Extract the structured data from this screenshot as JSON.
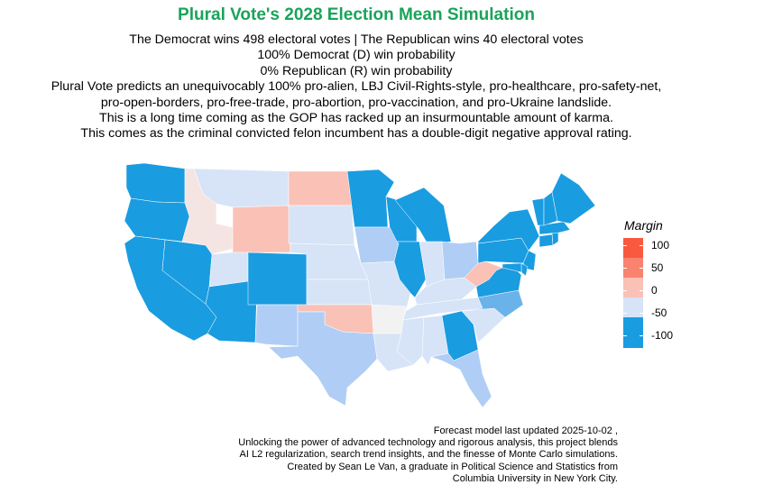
{
  "title": "Plural Vote's 2028 Election Mean Simulation",
  "subtitle_lines": [
    "The Democrat wins 498 electoral votes | The Republican wins 40 electoral votes",
    "100% Democrat (D) win probability",
    "0% Republican (R) win probability",
    "Plural Vote predicts an unequivocably 100% pro-alien, LBJ Civil-Rights-style, pro-healthcare, pro-safety-net,",
    "pro-open-borders, pro-free-trade, pro-abortion, pro-vaccination, and pro-Ukraine landslide.",
    "This is a long time coming as the GOP has racked up an insurmountable amount of karma.",
    "This comes as the criminal convicted felon incumbent has a double-digit negative approval rating."
  ],
  "legend": {
    "title": "Margin",
    "ticks": [
      "100",
      "50",
      "0",
      "-50",
      "-100"
    ],
    "colors": [
      "#f8593f",
      "#f9836e",
      "#fac1b6",
      "#d7e4f7",
      "#1a9ce0",
      "#1a9ce0"
    ]
  },
  "caption_lines": [
    "Forecast model last updated 2025-10-02 ,",
    "Unlocking the power of advanced technology and rigorous analysis, this project blends",
    "AI L2 regularization, search trend insights, and the finesse of Monte Carlo simulations.",
    "Created by Sean Le Van, a graduate in Political Science and Statistics from",
    "Columbia University in New York City."
  ],
  "colors": {
    "dark_blue": "#1a9ce0",
    "mid_blue": "#6ab2ea",
    "light_blue": "#b0cdf5",
    "pale_blue": "#d7e4f7",
    "grey": "#f2f2f2",
    "pale_pink": "#f5e5e2",
    "light_pink": "#fac1b6"
  },
  "states": [
    {
      "abbr": "WA",
      "fill": "dark_blue"
    },
    {
      "abbr": "OR",
      "fill": "dark_blue"
    },
    {
      "abbr": "CA",
      "fill": "dark_blue"
    },
    {
      "abbr": "NV",
      "fill": "dark_blue"
    },
    {
      "abbr": "ID",
      "fill": "pale_pink"
    },
    {
      "abbr": "MT",
      "fill": "pale_blue"
    },
    {
      "abbr": "WY",
      "fill": "light_pink"
    },
    {
      "abbr": "UT",
      "fill": "pale_blue"
    },
    {
      "abbr": "AZ",
      "fill": "dark_blue"
    },
    {
      "abbr": "CO",
      "fill": "dark_blue"
    },
    {
      "abbr": "NM",
      "fill": "light_blue"
    },
    {
      "abbr": "ND",
      "fill": "light_pink"
    },
    {
      "abbr": "SD",
      "fill": "pale_blue"
    },
    {
      "abbr": "NE",
      "fill": "pale_blue"
    },
    {
      "abbr": "KS",
      "fill": "pale_blue"
    },
    {
      "abbr": "OK",
      "fill": "light_pink"
    },
    {
      "abbr": "TX",
      "fill": "light_blue"
    },
    {
      "abbr": "MN",
      "fill": "dark_blue"
    },
    {
      "abbr": "IA",
      "fill": "light_blue"
    },
    {
      "abbr": "MO",
      "fill": "pale_blue"
    },
    {
      "abbr": "AR",
      "fill": "grey"
    },
    {
      "abbr": "LA",
      "fill": "pale_blue"
    },
    {
      "abbr": "WI",
      "fill": "dark_blue"
    },
    {
      "abbr": "IL",
      "fill": "dark_blue"
    },
    {
      "abbr": "MI",
      "fill": "dark_blue"
    },
    {
      "abbr": "IN",
      "fill": "pale_blue"
    },
    {
      "abbr": "OH",
      "fill": "light_blue"
    },
    {
      "abbr": "KY",
      "fill": "pale_blue"
    },
    {
      "abbr": "TN",
      "fill": "pale_blue"
    },
    {
      "abbr": "MS",
      "fill": "pale_blue"
    },
    {
      "abbr": "AL",
      "fill": "pale_blue"
    },
    {
      "abbr": "GA",
      "fill": "dark_blue"
    },
    {
      "abbr": "FL",
      "fill": "light_blue"
    },
    {
      "abbr": "SC",
      "fill": "pale_blue"
    },
    {
      "abbr": "NC",
      "fill": "mid_blue"
    },
    {
      "abbr": "VA",
      "fill": "dark_blue"
    },
    {
      "abbr": "WV",
      "fill": "light_pink"
    },
    {
      "abbr": "PA",
      "fill": "dark_blue"
    },
    {
      "abbr": "NY",
      "fill": "dark_blue"
    },
    {
      "abbr": "NJ",
      "fill": "dark_blue"
    },
    {
      "abbr": "DE",
      "fill": "dark_blue"
    },
    {
      "abbr": "MD",
      "fill": "dark_blue"
    },
    {
      "abbr": "CT",
      "fill": "dark_blue"
    },
    {
      "abbr": "RI",
      "fill": "dark_blue"
    },
    {
      "abbr": "MA",
      "fill": "dark_blue"
    },
    {
      "abbr": "VT",
      "fill": "dark_blue"
    },
    {
      "abbr": "NH",
      "fill": "dark_blue"
    },
    {
      "abbr": "ME",
      "fill": "dark_blue"
    }
  ]
}
